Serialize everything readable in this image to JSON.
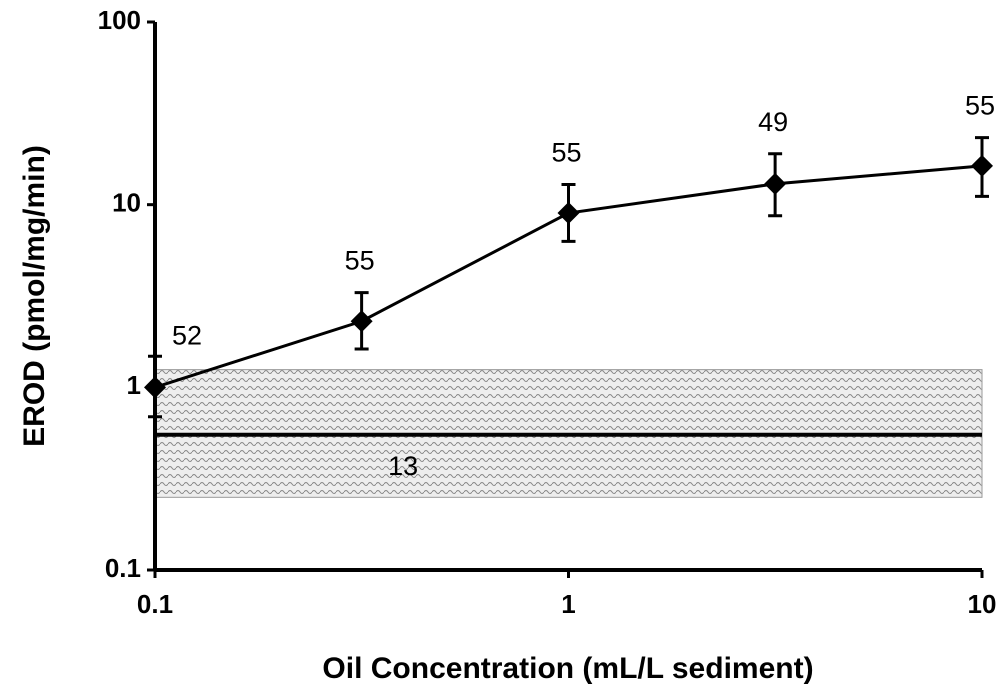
{
  "chart_data": {
    "type": "line",
    "x_label": "Oil Concentration (mL/L sediment)",
    "y_label": "EROD (pmol/mg/min)",
    "x": [
      0.1,
      0.316,
      1,
      3.16,
      10
    ],
    "series": [
      {
        "color": "#000000",
        "values": [
          1.0,
          2.3,
          9.0,
          13.0,
          16.3
        ],
        "error_plus": [
          0.48,
          1.0,
          3.9,
          6.0,
          7.0
        ],
        "error_minus": [
          0.31,
          0.68,
          2.7,
          4.3,
          5.2
        ],
        "sample_sizes": [
          52,
          55,
          55,
          49,
          55
        ]
      }
    ],
    "reference": {
      "mean": 0.55,
      "low": 0.25,
      "high": 1.25,
      "sample_size": 13,
      "color": "#999999"
    },
    "xlim": [
      0.1,
      10
    ],
    "ylim": [
      0.1,
      100
    ],
    "xticks": [
      0.1,
      1,
      10
    ],
    "yticks": [
      0.1,
      1,
      10,
      100
    ],
    "xscale": "log",
    "yscale": "log",
    "grid": false
  }
}
